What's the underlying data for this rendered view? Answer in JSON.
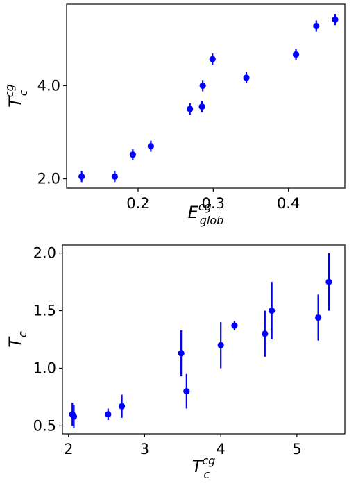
{
  "chart_data": [
    {
      "type": "scatter",
      "title": "",
      "xlabel": {
        "base": "E",
        "sup": "cg",
        "sub": "glob"
      },
      "ylabel": {
        "base": "T",
        "sup": "cg",
        "sub": "c"
      },
      "xlim": [
        0.105,
        0.475
      ],
      "ylim": [
        1.8,
        5.75
      ],
      "xticks": [
        0.2,
        0.3,
        0.4
      ],
      "xtick_labels": [
        "0.2",
        "0.3",
        "0.4"
      ],
      "yticks": [
        2.0,
        4.0
      ],
      "ytick_labels": [
        "2.0",
        "4.0"
      ],
      "grid": false,
      "marker_color": "#0000ff",
      "series": [
        {
          "x": [
            0.125,
            0.169,
            0.193,
            0.217,
            0.269,
            0.285,
            0.286,
            0.299,
            0.344,
            0.41,
            0.437,
            0.462
          ],
          "y": [
            2.05,
            2.05,
            2.52,
            2.7,
            3.5,
            3.55,
            4.0,
            4.57,
            4.17,
            4.67,
            5.28,
            5.42
          ],
          "yerr": [
            0.12,
            0.12,
            0.12,
            0.12,
            0.12,
            0.12,
            0.12,
            0.12,
            0.12,
            0.12,
            0.12,
            0.12
          ]
        }
      ]
    },
    {
      "type": "scatter",
      "title": "",
      "xlabel": {
        "base": "T",
        "sup": "cg",
        "sub": "c"
      },
      "ylabel": {
        "base": "T",
        "sup": "",
        "sub": "c"
      },
      "xlim": [
        1.92,
        5.63
      ],
      "ylim": [
        0.43,
        2.07
      ],
      "xticks": [
        2,
        3,
        4,
        5
      ],
      "xtick_labels": [
        "2",
        "3",
        "4",
        "5"
      ],
      "yticks": [
        0.5,
        1.0,
        1.5,
        2.0
      ],
      "ytick_labels": [
        "0.5",
        "1.0",
        "1.5",
        "2.0"
      ],
      "grid": false,
      "marker_color": "#0000ff",
      "series": [
        {
          "x": [
            2.05,
            2.07,
            2.52,
            2.7,
            3.48,
            3.55,
            4.0,
            4.18,
            4.58,
            4.67,
            5.28,
            5.42
          ],
          "y": [
            0.6,
            0.58,
            0.6,
            0.67,
            1.13,
            0.8,
            1.2,
            1.37,
            1.3,
            1.5,
            1.44,
            1.75
          ],
          "yerr": [
            0.1,
            0.1,
            0.05,
            0.1,
            0.2,
            0.15,
            0.2,
            0.04,
            0.2,
            0.25,
            0.2,
            0.25
          ]
        }
      ]
    }
  ]
}
